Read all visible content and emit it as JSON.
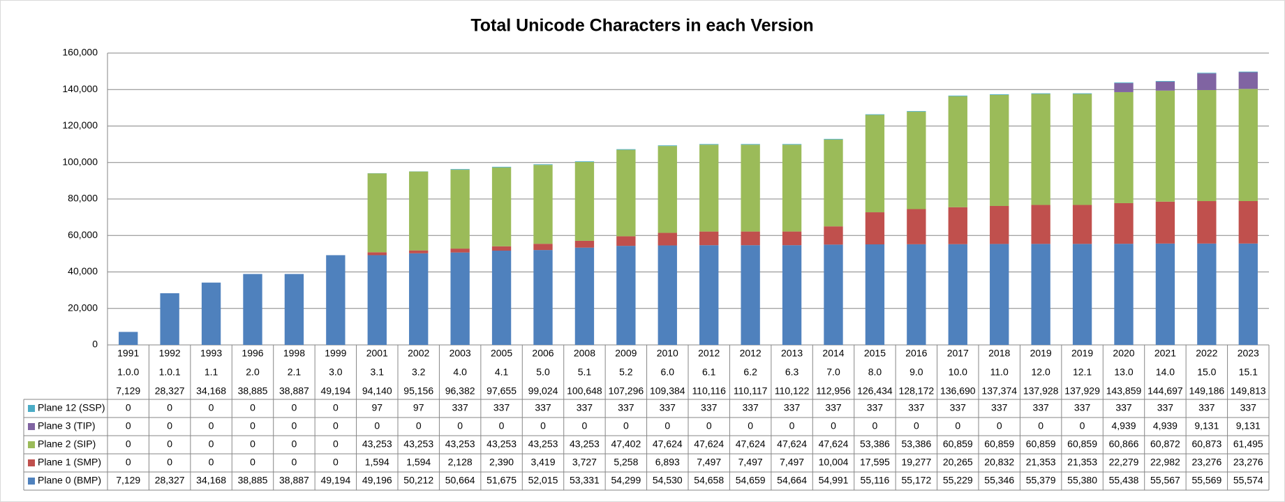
{
  "chart_data": {
    "type": "stacked-bar",
    "title": "Total Unicode Characters in each Version",
    "categories": [
      [
        "1991",
        "1.0.0",
        "7,129"
      ],
      [
        "1992",
        "1.0.1",
        "28,327"
      ],
      [
        "1993",
        "1.1",
        "34,168"
      ],
      [
        "1996",
        "2.0",
        "38,885"
      ],
      [
        "1998",
        "2.1",
        "38,887"
      ],
      [
        "1999",
        "3.0",
        "49,194"
      ],
      [
        "2001",
        "3.1",
        "94,140"
      ],
      [
        "2002",
        "3.2",
        "95,156"
      ],
      [
        "2003",
        "4.0",
        "96,382"
      ],
      [
        "2005",
        "4.1",
        "97,655"
      ],
      [
        "2006",
        "5.0",
        "99,024"
      ],
      [
        "2008",
        "5.1",
        "100,648"
      ],
      [
        "2009",
        "5.2",
        "107,296"
      ],
      [
        "2010",
        "6.0",
        "109,384"
      ],
      [
        "2012",
        "6.1",
        "110,116"
      ],
      [
        "2012",
        "6.2",
        "110,117"
      ],
      [
        "2013",
        "6.3",
        "110,122"
      ],
      [
        "2014",
        "7.0",
        "112,956"
      ],
      [
        "2015",
        "8.0",
        "126,434"
      ],
      [
        "2016",
        "9.0",
        "128,172"
      ],
      [
        "2017",
        "10.0",
        "136,690"
      ],
      [
        "2018",
        "11.0",
        "137,374"
      ],
      [
        "2019",
        "12.0",
        "137,928"
      ],
      [
        "2019",
        "12.1",
        "137,929"
      ],
      [
        "2020",
        "13.0",
        "143,859"
      ],
      [
        "2021",
        "14.0",
        "144,697"
      ],
      [
        "2022",
        "15.0",
        "149,186"
      ],
      [
        "2023",
        "15.1",
        "149,813"
      ]
    ],
    "series": [
      {
        "name": "Plane 0 (BMP)",
        "color": "#4f81bd",
        "values": [
          7129,
          28327,
          34168,
          38885,
          38887,
          49194,
          49196,
          50212,
          50664,
          51675,
          52015,
          53331,
          54299,
          54530,
          54658,
          54659,
          54664,
          54991,
          55116,
          55172,
          55229,
          55346,
          55379,
          55380,
          55438,
          55567,
          55569,
          55574
        ],
        "value_labels": [
          "7,129",
          "28,327",
          "34,168",
          "38,885",
          "38,887",
          "49,194",
          "49,196",
          "50,212",
          "50,664",
          "51,675",
          "52,015",
          "53,331",
          "54,299",
          "54,530",
          "54,658",
          "54,659",
          "54,664",
          "54,991",
          "55,116",
          "55,172",
          "55,229",
          "55,346",
          "55,379",
          "55,380",
          "55,438",
          "55,567",
          "55,569",
          "55,574"
        ]
      },
      {
        "name": "Plane 1 (SMP)",
        "color": "#c0504d",
        "values": [
          0,
          0,
          0,
          0,
          0,
          0,
          1594,
          1594,
          2128,
          2390,
          3419,
          3727,
          5258,
          6893,
          7497,
          7497,
          7497,
          10004,
          17595,
          19277,
          20265,
          20832,
          21353,
          21353,
          22279,
          22982,
          23276,
          23276
        ],
        "value_labels": [
          "0",
          "0",
          "0",
          "0",
          "0",
          "0",
          "1,594",
          "1,594",
          "2,128",
          "2,390",
          "3,419",
          "3,727",
          "5,258",
          "6,893",
          "7,497",
          "7,497",
          "7,497",
          "10,004",
          "17,595",
          "19,277",
          "20,265",
          "20,832",
          "21,353",
          "21,353",
          "22,279",
          "22,982",
          "23,276",
          "23,276"
        ]
      },
      {
        "name": "Plane 2 (SIP)",
        "color": "#9bbb59",
        "values": [
          0,
          0,
          0,
          0,
          0,
          0,
          43253,
          43253,
          43253,
          43253,
          43253,
          43253,
          47402,
          47624,
          47624,
          47624,
          47624,
          47624,
          53386,
          53386,
          60859,
          60859,
          60859,
          60859,
          60866,
          60872,
          60873,
          61495
        ],
        "value_labels": [
          "0",
          "0",
          "0",
          "0",
          "0",
          "0",
          "43,253",
          "43,253",
          "43,253",
          "43,253",
          "43,253",
          "43,253",
          "47,402",
          "47,624",
          "47,624",
          "47,624",
          "47,624",
          "47,624",
          "53,386",
          "53,386",
          "60,859",
          "60,859",
          "60,859",
          "60,859",
          "60,866",
          "60,872",
          "60,873",
          "61,495"
        ]
      },
      {
        "name": "Plane 3 (TIP)",
        "color": "#8064a2",
        "values": [
          0,
          0,
          0,
          0,
          0,
          0,
          0,
          0,
          0,
          0,
          0,
          0,
          0,
          0,
          0,
          0,
          0,
          0,
          0,
          0,
          0,
          0,
          0,
          0,
          4939,
          4939,
          9131,
          9131
        ],
        "value_labels": [
          "0",
          "0",
          "0",
          "0",
          "0",
          "0",
          "0",
          "0",
          "0",
          "0",
          "0",
          "0",
          "0",
          "0",
          "0",
          "0",
          "0",
          "0",
          "0",
          "0",
          "0",
          "0",
          "0",
          "0",
          "4,939",
          "4,939",
          "9,131",
          "9,131"
        ]
      },
      {
        "name": "Plane 12 (SSP)",
        "color": "#4bacc6",
        "values": [
          0,
          0,
          0,
          0,
          0,
          0,
          97,
          97,
          337,
          337,
          337,
          337,
          337,
          337,
          337,
          337,
          337,
          337,
          337,
          337,
          337,
          337,
          337,
          337,
          337,
          337,
          337,
          337
        ],
        "value_labels": [
          "0",
          "0",
          "0",
          "0",
          "0",
          "0",
          "97",
          "97",
          "337",
          "337",
          "337",
          "337",
          "337",
          "337",
          "337",
          "337",
          "337",
          "337",
          "337",
          "337",
          "337",
          "337",
          "337",
          "337",
          "337",
          "337",
          "337",
          "337"
        ]
      }
    ],
    "ylim": [
      0,
      160000
    ],
    "yticks": [
      {
        "value": 0,
        "label": "0"
      },
      {
        "value": 20000,
        "label": "20,000"
      },
      {
        "value": 40000,
        "label": "40,000"
      },
      {
        "value": 60000,
        "label": "60,000"
      },
      {
        "value": 80000,
        "label": "80,000"
      },
      {
        "value": 100000,
        "label": "100,000"
      },
      {
        "value": 120000,
        "label": "120,000"
      },
      {
        "value": 140000,
        "label": "140,000"
      },
      {
        "value": 160000,
        "label": "160,000"
      }
    ],
    "grid": true
  }
}
